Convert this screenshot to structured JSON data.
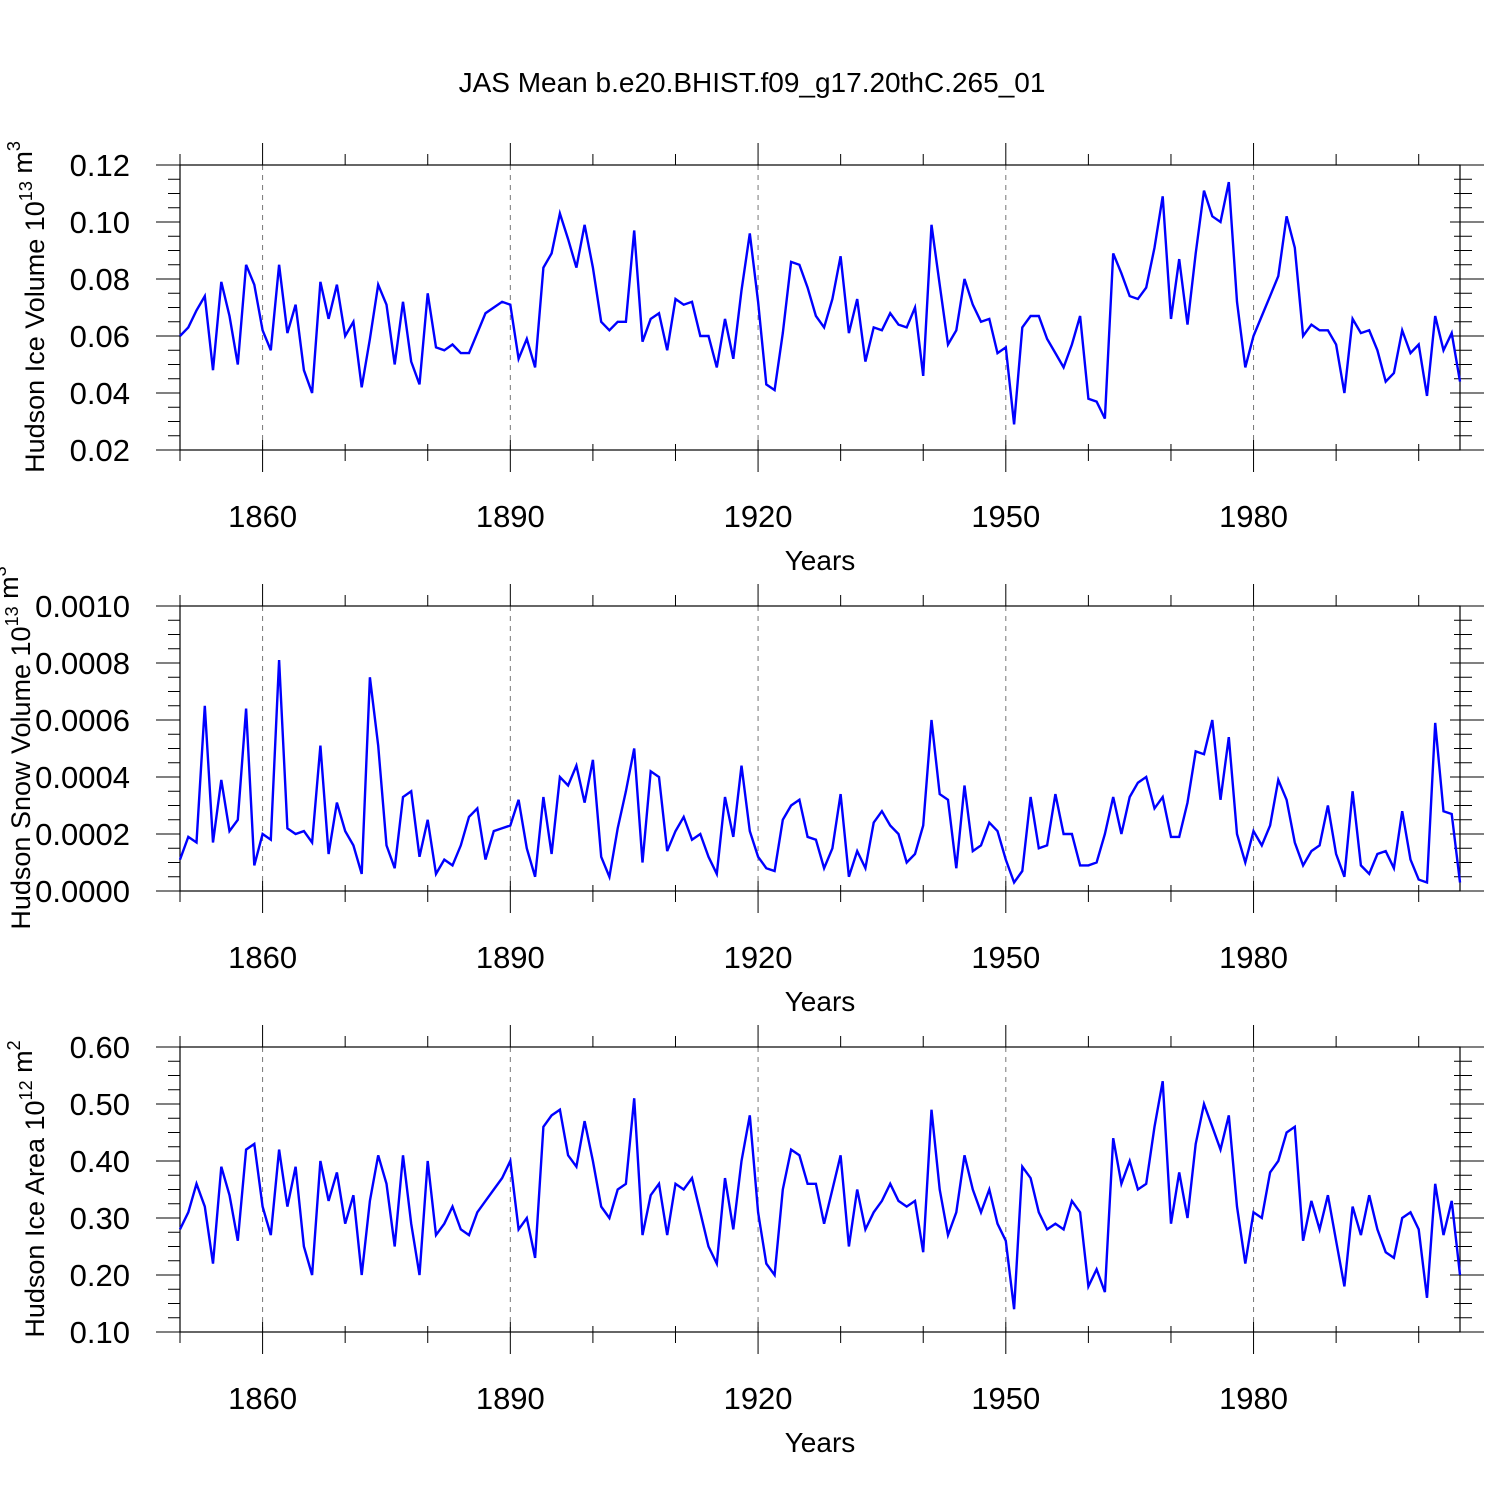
{
  "title": "JAS Mean b.e20.BHIST.f09_g17.20thC.265_01",
  "line_color": "#0000ff",
  "chart_data": [
    {
      "type": "line",
      "xlabel": "Years",
      "ylabel": "Hudson Ice Volume 10^13 m^3",
      "xlim": [
        1850,
        2005
      ],
      "ylim": [
        0.02,
        0.12
      ],
      "x_ticks": [
        1860,
        1890,
        1920,
        1950,
        1980
      ],
      "y_ticks": [
        "0.02",
        "0.04",
        "0.06",
        "0.08",
        "0.10",
        "0.12"
      ],
      "y_minor_step": 0.005,
      "grid": "dashed vertical at major x ticks",
      "x_start": 1850,
      "values": [
        0.06,
        0.063,
        0.069,
        0.074,
        0.048,
        0.079,
        0.067,
        0.05,
        0.085,
        0.078,
        0.062,
        0.055,
        0.085,
        0.061,
        0.071,
        0.048,
        0.04,
        0.079,
        0.066,
        0.078,
        0.06,
        0.065,
        0.042,
        0.059,
        0.078,
        0.071,
        0.05,
        0.072,
        0.051,
        0.043,
        0.075,
        0.056,
        0.055,
        0.057,
        0.054,
        0.054,
        0.061,
        0.068,
        0.07,
        0.072,
        0.071,
        0.052,
        0.059,
        0.049,
        0.084,
        0.089,
        0.103,
        0.094,
        0.084,
        0.099,
        0.084,
        0.065,
        0.062,
        0.065,
        0.065,
        0.097,
        0.058,
        0.066,
        0.068,
        0.055,
        0.073,
        0.071,
        0.072,
        0.06,
        0.06,
        0.049,
        0.066,
        0.052,
        0.076,
        0.096,
        0.072,
        0.043,
        0.041,
        0.061,
        0.086,
        0.085,
        0.077,
        0.067,
        0.063,
        0.073,
        0.088,
        0.061,
        0.073,
        0.051,
        0.063,
        0.062,
        0.068,
        0.064,
        0.063,
        0.07,
        0.046,
        0.099,
        0.078,
        0.057,
        0.062,
        0.08,
        0.071,
        0.065,
        0.066,
        0.054,
        0.056,
        0.029,
        0.063,
        0.067,
        0.067,
        0.059,
        0.054,
        0.049,
        0.057,
        0.067,
        0.038,
        0.037,
        0.031,
        0.089,
        0.082,
        0.074,
        0.073,
        0.077,
        0.091,
        0.109,
        0.066,
        0.087,
        0.064,
        0.089,
        0.111,
        0.102,
        0.1,
        0.114,
        0.072,
        0.049,
        0.06,
        0.067,
        0.074,
        0.081,
        0.102,
        0.091,
        0.06,
        0.064,
        0.062,
        0.062,
        0.057,
        0.04,
        0.066,
        0.061,
        0.062,
        0.055,
        0.044,
        0.047,
        0.062,
        0.054,
        0.057,
        0.039,
        0.067,
        0.055,
        0.061,
        0.044
      ]
    },
    {
      "type": "line",
      "xlabel": "Years",
      "ylabel": "Hudson Snow Volume 10^13 m^3",
      "xlim": [
        1850,
        2005
      ],
      "ylim": [
        0.0,
        0.001
      ],
      "x_ticks": [
        1860,
        1890,
        1920,
        1950,
        1980
      ],
      "y_ticks": [
        "0.0000",
        "0.0002",
        "0.0004",
        "0.0006",
        "0.0008",
        "0.0010"
      ],
      "y_minor_step": 5e-05,
      "grid": "dashed vertical at major x ticks",
      "x_start": 1850,
      "values": [
        0.00011,
        0.00019,
        0.00017,
        0.00065,
        0.00017,
        0.00039,
        0.00021,
        0.00025,
        0.00064,
        9e-05,
        0.0002,
        0.00018,
        0.00081,
        0.00022,
        0.0002,
        0.00021,
        0.00017,
        0.00051,
        0.00013,
        0.00031,
        0.00021,
        0.00016,
        6e-05,
        0.00075,
        0.00051,
        0.00016,
        8e-05,
        0.00033,
        0.00035,
        0.00012,
        0.00025,
        6e-05,
        0.00011,
        9e-05,
        0.00016,
        0.00026,
        0.00029,
        0.00011,
        0.00021,
        0.00022,
        0.00023,
        0.00032,
        0.00015,
        5e-05,
        0.00033,
        0.00013,
        0.0004,
        0.00037,
        0.00044,
        0.00031,
        0.00046,
        0.00012,
        5e-05,
        0.00022,
        0.00035,
        0.0005,
        0.0001,
        0.00042,
        0.0004,
        0.00014,
        0.00021,
        0.00026,
        0.00018,
        0.0002,
        0.00012,
        6e-05,
        0.00033,
        0.00019,
        0.00044,
        0.00021,
        0.00012,
        8e-05,
        7e-05,
        0.00025,
        0.0003,
        0.00032,
        0.00019,
        0.00018,
        8e-05,
        0.00015,
        0.00034,
        5e-05,
        0.00014,
        8e-05,
        0.00024,
        0.00028,
        0.00023,
        0.0002,
        0.0001,
        0.00013,
        0.00023,
        0.0006,
        0.00034,
        0.00032,
        8e-05,
        0.00037,
        0.00014,
        0.00016,
        0.00024,
        0.00021,
        0.00011,
        3e-05,
        7e-05,
        0.00033,
        0.00015,
        0.00016,
        0.00034,
        0.0002,
        0.0002,
        9e-05,
        9e-05,
        0.0001,
        0.0002,
        0.00033,
        0.0002,
        0.00033,
        0.00038,
        0.0004,
        0.00029,
        0.00033,
        0.00019,
        0.00019,
        0.00031,
        0.00049,
        0.00048,
        0.0006,
        0.00032,
        0.00054,
        0.0002,
        0.0001,
        0.00021,
        0.00016,
        0.00023,
        0.00039,
        0.00032,
        0.00017,
        9e-05,
        0.00014,
        0.00016,
        0.0003,
        0.00013,
        5e-05,
        0.00035,
        9e-05,
        6e-05,
        0.00013,
        0.00014,
        8e-05,
        0.00028,
        0.00011,
        4e-05,
        3e-05,
        0.00059,
        0.00028,
        0.00027,
        3e-05
      ]
    },
    {
      "type": "line",
      "xlabel": "Years",
      "ylabel": "Hudson Ice Area 10^12 m^2",
      "xlim": [
        1850,
        2005
      ],
      "ylim": [
        0.1,
        0.6
      ],
      "x_ticks": [
        1860,
        1890,
        1920,
        1950,
        1980
      ],
      "y_ticks": [
        "0.10",
        "0.20",
        "0.30",
        "0.40",
        "0.50",
        "0.60"
      ],
      "y_minor_step": 0.025,
      "grid": "dashed vertical at major x ticks",
      "x_start": 1850,
      "values": [
        0.28,
        0.31,
        0.36,
        0.32,
        0.22,
        0.39,
        0.34,
        0.26,
        0.42,
        0.43,
        0.32,
        0.27,
        0.42,
        0.32,
        0.39,
        0.25,
        0.2,
        0.4,
        0.33,
        0.38,
        0.29,
        0.34,
        0.2,
        0.33,
        0.41,
        0.36,
        0.25,
        0.41,
        0.29,
        0.2,
        0.4,
        0.27,
        0.29,
        0.32,
        0.28,
        0.27,
        0.31,
        0.33,
        0.35,
        0.37,
        0.4,
        0.28,
        0.3,
        0.23,
        0.46,
        0.48,
        0.49,
        0.41,
        0.39,
        0.47,
        0.4,
        0.32,
        0.3,
        0.35,
        0.36,
        0.51,
        0.27,
        0.34,
        0.36,
        0.27,
        0.36,
        0.35,
        0.37,
        0.31,
        0.25,
        0.22,
        0.37,
        0.28,
        0.4,
        0.48,
        0.31,
        0.22,
        0.2,
        0.35,
        0.42,
        0.41,
        0.36,
        0.36,
        0.29,
        0.35,
        0.41,
        0.25,
        0.35,
        0.28,
        0.31,
        0.33,
        0.36,
        0.33,
        0.32,
        0.33,
        0.24,
        0.49,
        0.35,
        0.27,
        0.31,
        0.41,
        0.35,
        0.31,
        0.35,
        0.29,
        0.26,
        0.14,
        0.39,
        0.37,
        0.31,
        0.28,
        0.29,
        0.28,
        0.33,
        0.31,
        0.18,
        0.21,
        0.17,
        0.44,
        0.36,
        0.4,
        0.35,
        0.36,
        0.46,
        0.54,
        0.29,
        0.38,
        0.3,
        0.43,
        0.5,
        0.46,
        0.42,
        0.48,
        0.32,
        0.22,
        0.31,
        0.3,
        0.38,
        0.4,
        0.45,
        0.46,
        0.26,
        0.33,
        0.28,
        0.34,
        0.26,
        0.18,
        0.32,
        0.27,
        0.34,
        0.28,
        0.24,
        0.23,
        0.3,
        0.31,
        0.28,
        0.16,
        0.36,
        0.27,
        0.33,
        0.2
      ]
    }
  ]
}
